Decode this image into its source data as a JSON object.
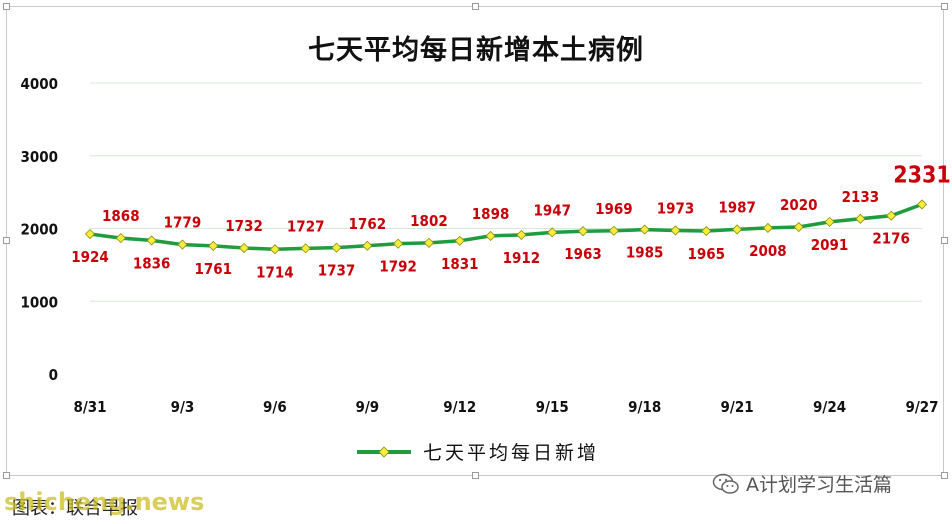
{
  "chart_data": {
    "type": "line",
    "title": "七天平均每日新增本土病例",
    "x": [
      "8/31",
      "9/1",
      "9/2",
      "9/3",
      "9/4",
      "9/5",
      "9/6",
      "9/7",
      "9/8",
      "9/9",
      "9/10",
      "9/11",
      "9/12",
      "9/13",
      "9/14",
      "9/15",
      "9/16",
      "9/17",
      "9/18",
      "9/19",
      "9/20",
      "9/21",
      "9/22",
      "9/23",
      "9/24",
      "9/25",
      "9/26",
      "9/27"
    ],
    "x_tick_labels": [
      "8/31",
      "9/3",
      "9/6",
      "9/9",
      "9/12",
      "9/15",
      "9/18",
      "9/21",
      "9/24",
      "9/27"
    ],
    "series": [
      {
        "name": "七天平均每日新增",
        "values": [
          1924,
          1868,
          1836,
          1779,
          1761,
          1732,
          1714,
          1727,
          1737,
          1762,
          1792,
          1802,
          1831,
          1898,
          1912,
          1947,
          1963,
          1969,
          1985,
          1973,
          1965,
          1987,
          2008,
          2020,
          2091,
          2133,
          2176,
          2331
        ]
      }
    ],
    "label_positions": [
      "below",
      "above",
      "below",
      "above",
      "below",
      "above",
      "below",
      "above",
      "below",
      "above",
      "below",
      "above",
      "below",
      "above",
      "below",
      "above",
      "below",
      "above",
      "below",
      "above",
      "below",
      "above",
      "below",
      "above",
      "below",
      "above",
      "below",
      "above"
    ],
    "ylim": [
      0,
      4000
    ],
    "y_ticks": [
      0,
      1000,
      2000,
      3000,
      4000
    ],
    "grid": true,
    "legend_position": "bottom",
    "colors": {
      "line": "#1e9c3e",
      "marker": "#f3ef3c",
      "marker_edge": "#8c8a16",
      "label": "#c8000a",
      "grid": "#d6e8d6"
    }
  },
  "legend": {
    "label": "七天平均每日新增"
  },
  "footer": {
    "wechat_label": "A计划学习生活篇",
    "credit": "图表：联合早报",
    "watermark": "shicheng.news"
  },
  "icons": {
    "wechat": "wechat-icon"
  }
}
